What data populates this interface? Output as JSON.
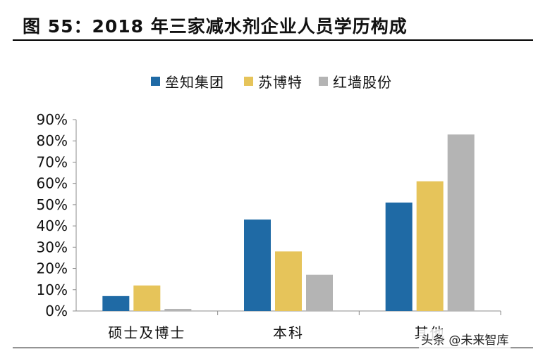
{
  "header": {
    "title": "图 55：2018 年三家减水剂企业人员学历构成"
  },
  "watermark": "头条 @未来智库",
  "chart_data": {
    "type": "bar",
    "title": "",
    "xlabel": "",
    "ylabel": "",
    "categories": [
      "硕士及博士",
      "本科",
      "其他"
    ],
    "series": [
      {
        "name": "垒知集团",
        "values": [
          0.07,
          0.43,
          0.51
        ],
        "color": "#1F6AA5"
      },
      {
        "name": "苏博特",
        "values": [
          0.12,
          0.28,
          0.61
        ],
        "color": "#E6C45A"
      },
      {
        "name": "红墙股份",
        "values": [
          0.01,
          0.17,
          0.83
        ],
        "color": "#B4B4B4"
      }
    ],
    "ylim": [
      0,
      0.9
    ],
    "yticks": [
      "0%",
      "10%",
      "20%",
      "30%",
      "40%",
      "50%",
      "60%",
      "70%",
      "80%",
      "90%"
    ],
    "grid": false,
    "legend": "top-center"
  }
}
